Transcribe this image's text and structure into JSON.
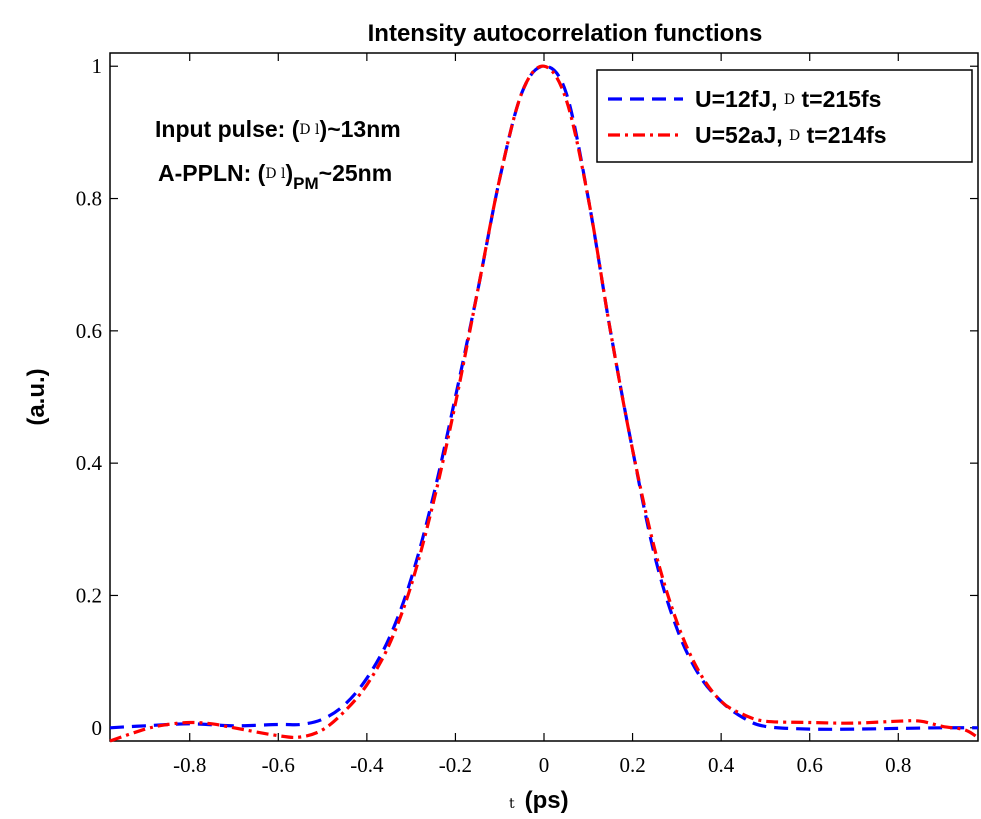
{
  "chart_data": {
    "type": "line",
    "title": "Intensity autocorrelation functions",
    "xlabel_symbol": "t",
    "xlabel_unit": "(ps)",
    "ylabel": "(a.u.)",
    "xlim": [
      -0.98,
      0.98
    ],
    "ylim": [
      -0.02,
      1.02
    ],
    "xticks": [
      -0.8,
      -0.6,
      -0.4,
      -0.2,
      0,
      0.2,
      0.4,
      0.6,
      0.8
    ],
    "xtick_labels": [
      "-0.8",
      "-0.6",
      "-0.4",
      "-0.2",
      "0",
      "0.2",
      "0.4",
      "0.6",
      "0.8"
    ],
    "yticks": [
      0,
      0.2,
      0.4,
      0.6,
      0.8,
      1
    ],
    "ytick_labels": [
      "0",
      "0.2",
      "0.4",
      "0.6",
      "0.8",
      "1"
    ],
    "grid": false,
    "legend_position": "top-right",
    "annotations": {
      "line1": {
        "prefix": "Input pulse: (",
        "symbol": "D l",
        "suffix": ")~13nm"
      },
      "line2": {
        "prefix": "A-PPLN: (",
        "symbol": "D l",
        "suffix": ")",
        "subscript": "PM",
        "tail": "~25nm"
      }
    },
    "series": [
      {
        "name": "U=12fJ, D t=215fs",
        "legend_parts": {
          "prefix": "U=12fJ, ",
          "symbol": "D",
          "suffix": " t=215fs"
        },
        "color": "#0000ff",
        "style": "dashed",
        "x": [
          -0.98,
          -0.9,
          -0.8,
          -0.7,
          -0.6,
          -0.55,
          -0.5,
          -0.45,
          -0.4,
          -0.35,
          -0.3,
          -0.25,
          -0.2,
          -0.15,
          -0.1,
          -0.05,
          0,
          0.05,
          0.1,
          0.15,
          0.2,
          0.25,
          0.3,
          0.35,
          0.4,
          0.45,
          0.5,
          0.6,
          0.7,
          0.8,
          0.9,
          0.98
        ],
        "y": [
          0.0,
          0.003,
          0.006,
          0.003,
          0.005,
          0.005,
          0.013,
          0.035,
          0.075,
          0.135,
          0.225,
          0.35,
          0.5,
          0.66,
          0.83,
          0.96,
          1.0,
          0.96,
          0.8,
          0.6,
          0.42,
          0.26,
          0.15,
          0.08,
          0.04,
          0.015,
          0.002,
          -0.002,
          -0.002,
          -0.001,
          0.0,
          0.0
        ]
      },
      {
        "name": "U=52aJ, D t=214fs",
        "legend_parts": {
          "prefix": "U=52aJ, ",
          "symbol": "D",
          "suffix": " t=214fs"
        },
        "color": "#ff0000",
        "style": "dashdot",
        "x": [
          -0.98,
          -0.9,
          -0.85,
          -0.8,
          -0.75,
          -0.7,
          -0.6,
          -0.55,
          -0.5,
          -0.45,
          -0.4,
          -0.35,
          -0.3,
          -0.25,
          -0.2,
          -0.15,
          -0.1,
          -0.05,
          0,
          0.05,
          0.1,
          0.15,
          0.2,
          0.25,
          0.3,
          0.35,
          0.4,
          0.45,
          0.5,
          0.6,
          0.7,
          0.8,
          0.85,
          0.9,
          0.95,
          0.98
        ],
        "y": [
          -0.02,
          -0.002,
          0.005,
          0.008,
          0.006,
          0.0,
          -0.012,
          -0.014,
          -0.003,
          0.025,
          0.065,
          0.125,
          0.215,
          0.34,
          0.49,
          0.66,
          0.83,
          0.96,
          1.0,
          0.95,
          0.8,
          0.6,
          0.42,
          0.27,
          0.16,
          0.085,
          0.04,
          0.02,
          0.01,
          0.008,
          0.007,
          0.01,
          0.01,
          0.002,
          -0.003,
          -0.015
        ]
      }
    ]
  }
}
